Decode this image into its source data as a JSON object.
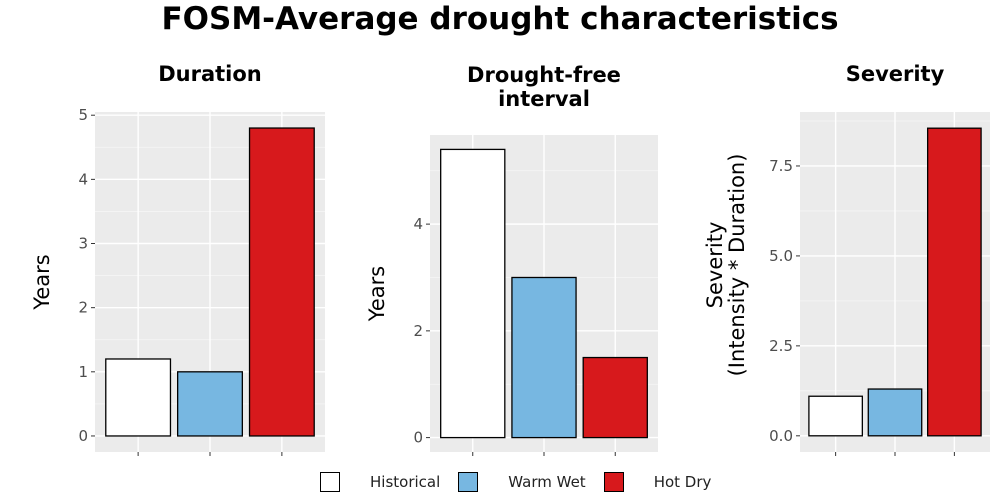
{
  "title": "FOSM-Average drought characteristics",
  "colors": {
    "Historical": "#ffffff",
    "Warm Wet": "#77b7e1",
    "Hot Dry": "#d7191c"
  },
  "legend": {
    "items": [
      {
        "label": "Historical",
        "color": "#ffffff"
      },
      {
        "label": "Warm Wet",
        "color": "#77b7e1"
      },
      {
        "label": "Hot Dry",
        "color": "#d7191c"
      }
    ]
  },
  "chart_data": [
    {
      "type": "bar",
      "title": "Duration",
      "ylabel": "Years",
      "categories": [
        "Historical",
        "Warm Wet",
        "Hot Dry"
      ],
      "values": [
        1.2,
        1.0,
        4.8
      ],
      "ylim": [
        -0.25,
        5.05
      ],
      "yticks": [
        0,
        1,
        2,
        3,
        4,
        5
      ],
      "ytick_labels": [
        "0",
        "1",
        "2",
        "3",
        "4",
        "5"
      ],
      "grid": true
    },
    {
      "type": "bar",
      "title": "Drought-free interval",
      "ylabel": "Years",
      "categories": [
        "Historical",
        "Warm Wet",
        "Hot Dry"
      ],
      "values": [
        5.4,
        3.0,
        1.5
      ],
      "ylim": [
        -0.27,
        5.67
      ],
      "yticks": [
        0,
        2,
        4
      ],
      "ytick_labels": [
        "0",
        "2",
        "4"
      ],
      "grid": true
    },
    {
      "type": "bar",
      "title": "Severity",
      "ylabel": "Severity (Intensity * Duration)",
      "categories": [
        "Historical",
        "Warm Wet",
        "Hot Dry"
      ],
      "values": [
        1.1,
        1.3,
        8.55
      ],
      "ylim": [
        -0.45,
        9.0
      ],
      "yticks": [
        0,
        2.5,
        5,
        7.5
      ],
      "ytick_labels": [
        "0.0",
        "2.5",
        "5.0",
        "7.5"
      ],
      "grid": true
    }
  ]
}
